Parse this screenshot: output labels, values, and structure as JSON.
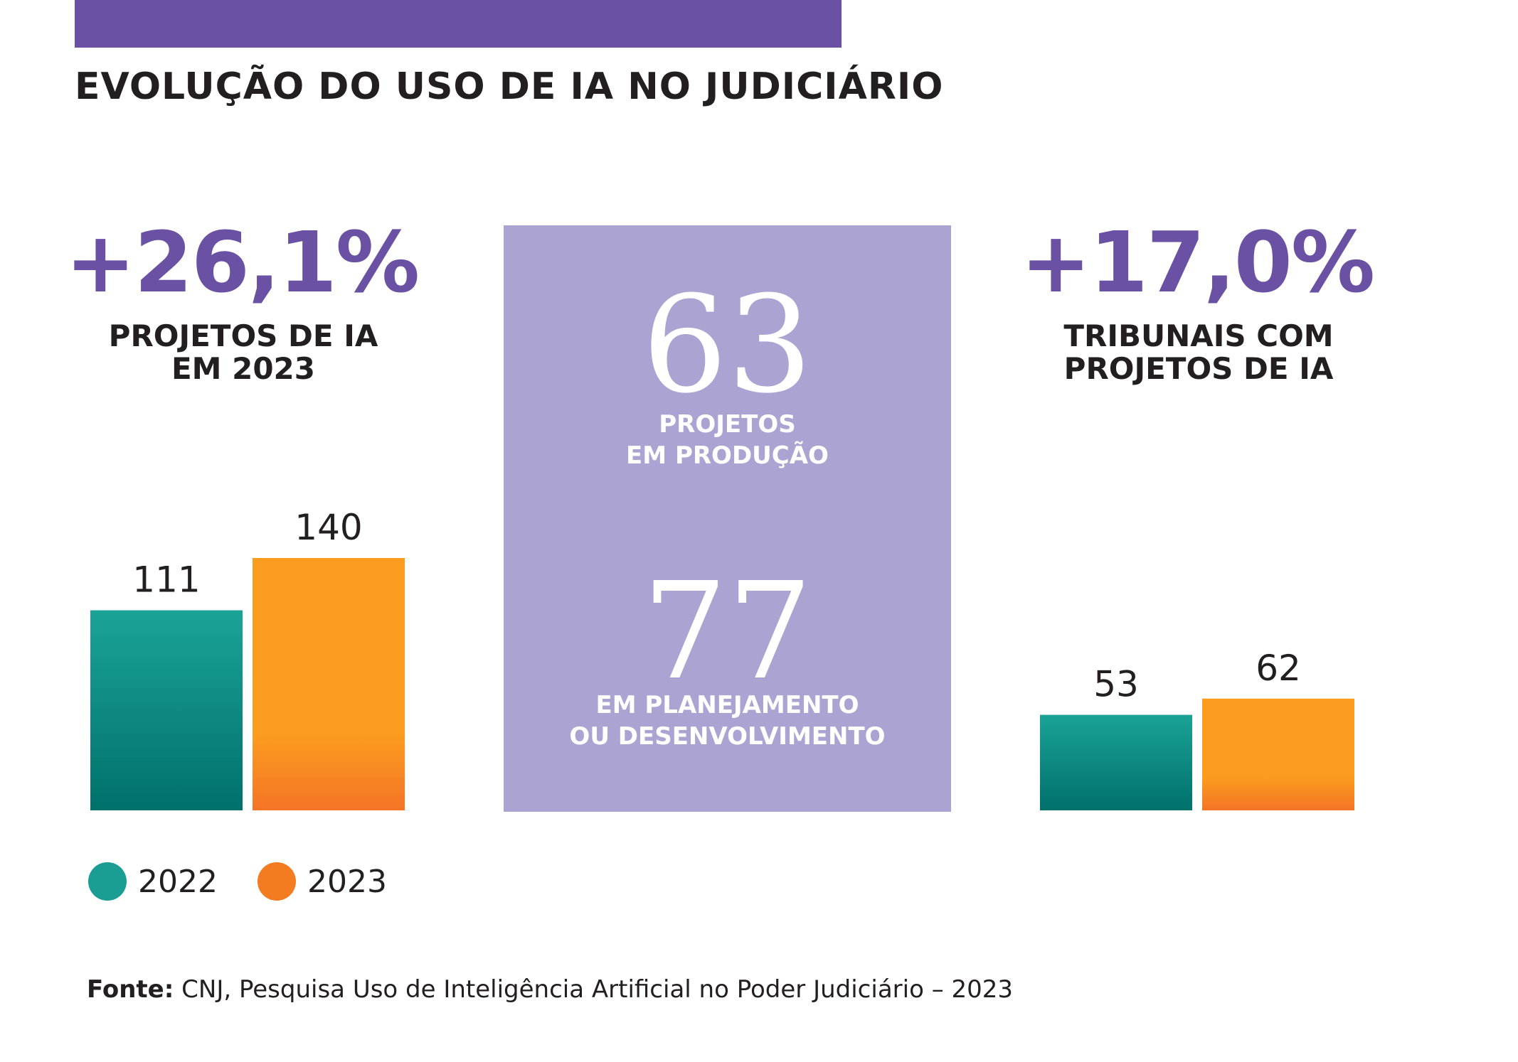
{
  "header": {
    "title": "EVOLUÇÃO DO USO DE IA NO JUDICIÁRIO",
    "bar_color": "#6a51a3"
  },
  "left_stat": {
    "percent": "+26,1%",
    "caption_line1": "PROJETOS DE IA",
    "caption_line2": "EM 2023"
  },
  "center_box": {
    "production_value": "63",
    "production_line1": "PROJETOS",
    "production_line2": "EM PRODUÇÃO",
    "planning_value": "77",
    "planning_line1": "EM PLANEJAMENTO",
    "planning_line2": "OU DESENVOLVIMENTO",
    "color": "#aba4d3"
  },
  "right_stat": {
    "percent": "+17,0%",
    "caption_line1": "TRIBUNAIS COM",
    "caption_line2": "PROJETOS DE IA"
  },
  "legend": {
    "items": [
      {
        "label": "2022",
        "color": "#1a9e93"
      },
      {
        "label": "2023",
        "color": "#f47b20"
      }
    ]
  },
  "source": {
    "label": "Fonte:",
    "text": "CNJ, Pesquisa Uso de Inteligência Artificial no Poder Judiciário – 2023"
  },
  "chart_data": [
    {
      "type": "bar",
      "categories": [
        "2022",
        "2023"
      ],
      "values": [
        111,
        140
      ],
      "value_labels": [
        "111",
        "140"
      ],
      "colors": [
        "#1a9e93",
        "#f9a01b"
      ],
      "ylim": [
        0,
        140
      ]
    },
    {
      "type": "bar",
      "categories": [
        "2022",
        "2023"
      ],
      "values": [
        53,
        62
      ],
      "value_labels": [
        "53",
        "62"
      ],
      "colors": [
        "#1a9e93",
        "#f9a01b"
      ],
      "ylim": [
        0,
        140
      ]
    }
  ]
}
